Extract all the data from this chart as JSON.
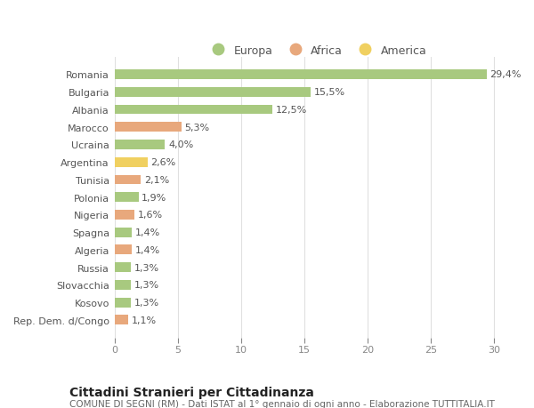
{
  "countries": [
    "Romania",
    "Bulgaria",
    "Albania",
    "Marocco",
    "Ucraina",
    "Argentina",
    "Tunisia",
    "Polonia",
    "Nigeria",
    "Spagna",
    "Algeria",
    "Russia",
    "Slovacchia",
    "Kosovo",
    "Rep. Dem. d/Congo"
  ],
  "values": [
    29.4,
    15.5,
    12.5,
    5.3,
    4.0,
    2.6,
    2.1,
    1.9,
    1.6,
    1.4,
    1.4,
    1.3,
    1.3,
    1.3,
    1.1
  ],
  "labels": [
    "29,4%",
    "15,5%",
    "12,5%",
    "5,3%",
    "4,0%",
    "2,6%",
    "2,1%",
    "1,9%",
    "1,6%",
    "1,4%",
    "1,4%",
    "1,3%",
    "1,3%",
    "1,3%",
    "1,1%"
  ],
  "categories": [
    "Europa",
    "Europa",
    "Europa",
    "Africa",
    "Europa",
    "America",
    "Africa",
    "Europa",
    "Africa",
    "Europa",
    "Africa",
    "Europa",
    "Europa",
    "Europa",
    "Africa"
  ],
  "colors": {
    "Europa": "#a8c97f",
    "Africa": "#e8a87c",
    "America": "#f0d060"
  },
  "xlim": [
    0,
    32
  ],
  "xticks": [
    0,
    5,
    10,
    15,
    20,
    25,
    30
  ],
  "title": "Cittadini Stranieri per Cittadinanza",
  "subtitle": "COMUNE DI SEGNI (RM) - Dati ISTAT al 1° gennaio di ogni anno - Elaborazione TUTTITALIA.IT",
  "bg_color": "#ffffff",
  "grid_color": "#e0e0e0",
  "bar_height": 0.55,
  "label_fontsize": 8,
  "tick_fontsize": 8,
  "title_fontsize": 10,
  "subtitle_fontsize": 7.5
}
